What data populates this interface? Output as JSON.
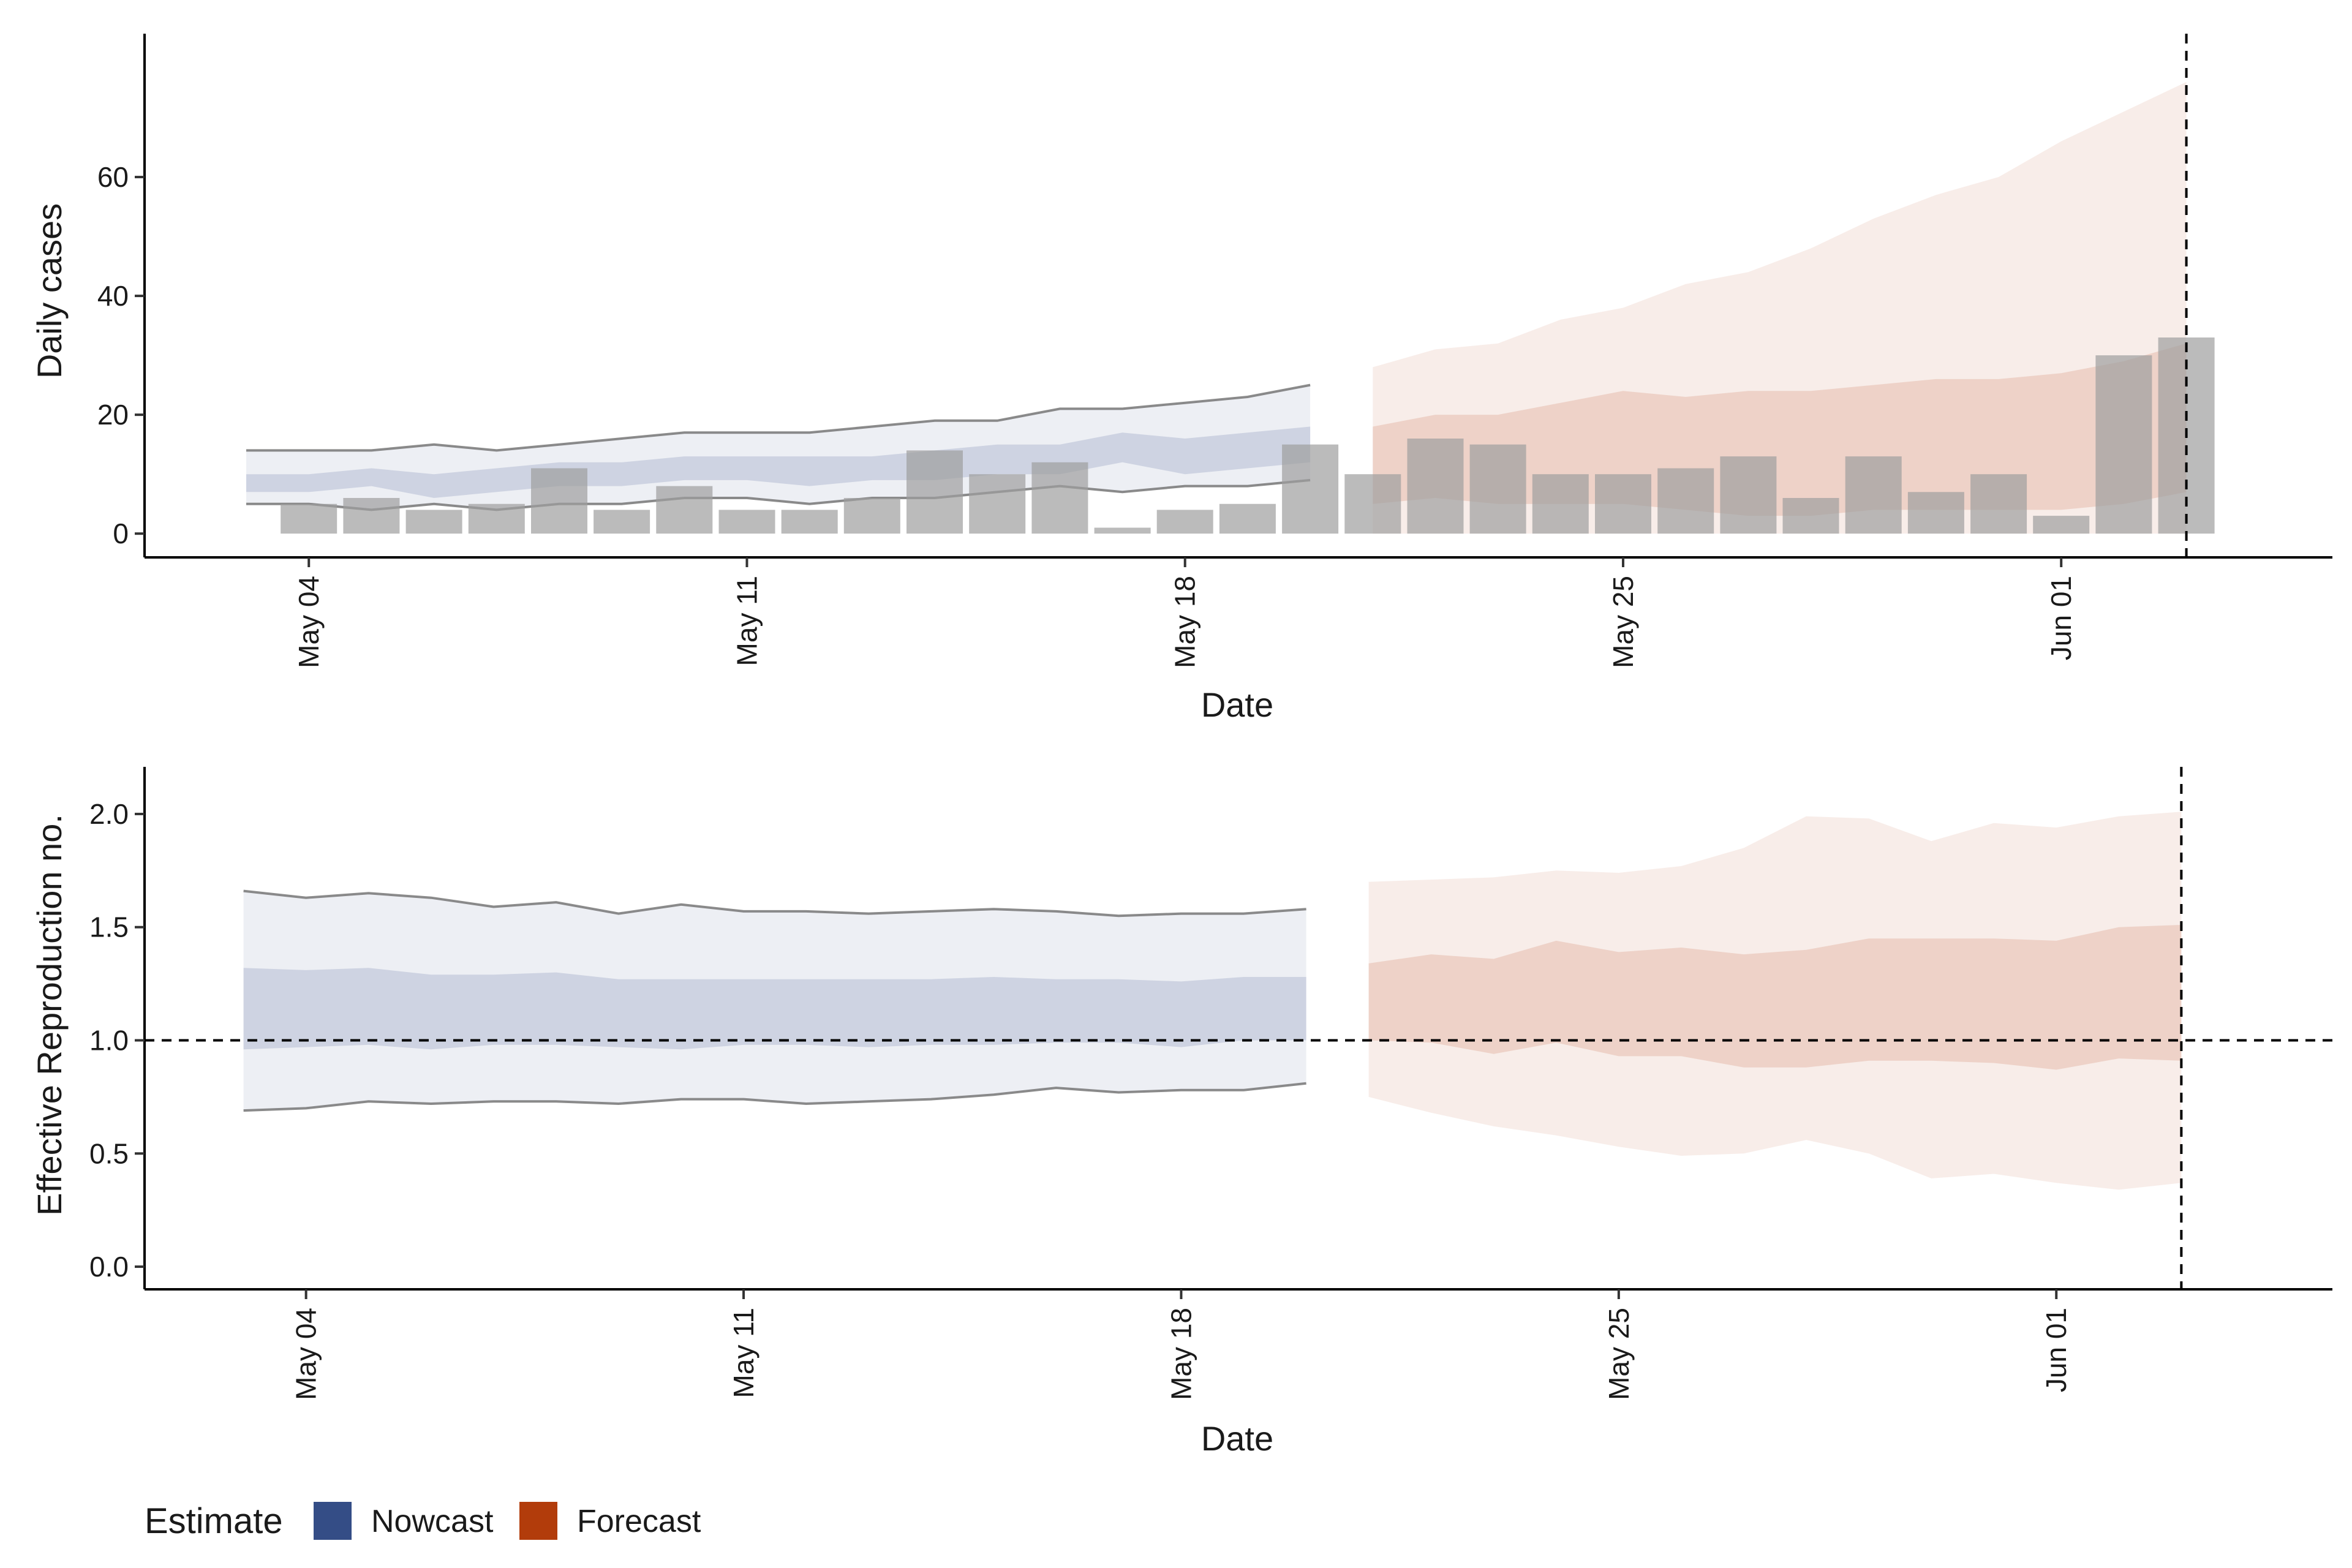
{
  "colors": {
    "nowcast": "#344d86",
    "forecast": "#b23c0b",
    "observed": "#9e9e9e",
    "axis": "#000000"
  },
  "legend": {
    "title": "Estimate",
    "items": [
      {
        "label": "Nowcast",
        "color": "#344d86"
      },
      {
        "label": "Forecast",
        "color": "#b23c0b"
      }
    ]
  },
  "chart_data": [
    {
      "type": "bar",
      "ylabel": "Daily cases",
      "xlabel": "Date",
      "x_ticks": [
        "May 04",
        "May 11",
        "May 18",
        "May 25",
        "Jun 01"
      ],
      "y_ticks": [
        "0",
        "20",
        "40",
        "60"
      ],
      "ylim": [
        -4,
        80
      ],
      "xlim": [
        "2020-05-01T09:00",
        "2020-06-05T08:00"
      ],
      "vline_date": "2020-06-03",
      "observed": {
        "dates": [
          "2020-05-04",
          "2020-05-05",
          "2020-05-06",
          "2020-05-07",
          "2020-05-08",
          "2020-05-09",
          "2020-05-10",
          "2020-05-11",
          "2020-05-12",
          "2020-05-13",
          "2020-05-14",
          "2020-05-15",
          "2020-05-16",
          "2020-05-17",
          "2020-05-18",
          "2020-05-19",
          "2020-05-20",
          "2020-05-21",
          "2020-05-22",
          "2020-05-23",
          "2020-05-24",
          "2020-05-25",
          "2020-05-26",
          "2020-05-27",
          "2020-05-28",
          "2020-05-29",
          "2020-05-30",
          "2020-05-31",
          "2020-06-01",
          "2020-06-02",
          "2020-06-03"
        ],
        "values": [
          5,
          6,
          4,
          5,
          11,
          4,
          8,
          4,
          4,
          6,
          14,
          10,
          12,
          1,
          4,
          5,
          15,
          10,
          16,
          15,
          10,
          10,
          11,
          13,
          6,
          13,
          7,
          10,
          3,
          30,
          33
        ]
      },
      "nowcast": {
        "dates": [
          "2020-05-03",
          "2020-05-04",
          "2020-05-05",
          "2020-05-06",
          "2020-05-07",
          "2020-05-08",
          "2020-05-09",
          "2020-05-10",
          "2020-05-11",
          "2020-05-12",
          "2020-05-13",
          "2020-05-14",
          "2020-05-15",
          "2020-05-16",
          "2020-05-17",
          "2020-05-18",
          "2020-05-19",
          "2020-05-20"
        ],
        "upper90": [
          14,
          14,
          14,
          15,
          14,
          15,
          16,
          17,
          17,
          17,
          18,
          19,
          19,
          21,
          21,
          22,
          23,
          25
        ],
        "upper50": [
          10,
          10,
          11,
          10,
          11,
          12,
          12,
          13,
          13,
          13,
          13,
          14,
          15,
          15,
          17,
          16,
          17,
          18
        ],
        "lower50": [
          7,
          7,
          8,
          6,
          7,
          8,
          8,
          9,
          9,
          8,
          9,
          9,
          10,
          10,
          12,
          10,
          11,
          12
        ],
        "lower90": [
          5,
          5,
          4,
          5,
          4,
          5,
          5,
          6,
          6,
          5,
          6,
          6,
          7,
          8,
          7,
          8,
          8,
          9
        ]
      },
      "forecast": {
        "dates": [
          "2020-05-21",
          "2020-05-22",
          "2020-05-23",
          "2020-05-24",
          "2020-05-25",
          "2020-05-26",
          "2020-05-27",
          "2020-05-28",
          "2020-05-29",
          "2020-05-30",
          "2020-05-31",
          "2020-06-01",
          "2020-06-02",
          "2020-06-03"
        ],
        "upper90": [
          28,
          31,
          32,
          36,
          38,
          42,
          44,
          48,
          53,
          57,
          60,
          66,
          71,
          76
        ],
        "upper50": [
          18,
          20,
          20,
          22,
          24,
          23,
          24,
          24,
          25,
          26,
          26,
          27,
          29,
          32
        ],
        "lower50": [
          5,
          6,
          5,
          5,
          5,
          4,
          3,
          3,
          4,
          4,
          4,
          4,
          5,
          7
        ],
        "lower90": [
          0,
          0,
          0,
          0,
          0,
          0,
          0,
          0,
          0,
          0,
          0,
          0,
          0,
          0
        ]
      }
    },
    {
      "type": "area",
      "ylabel": "Effective Reproduction no.",
      "xlabel": "Date",
      "x_ticks": [
        "May 04",
        "May 11",
        "May 18",
        "May 25",
        "Jun 01"
      ],
      "y_ticks": [
        "0.0",
        "0.5",
        "1.0",
        "1.5",
        "2.0"
      ],
      "ylim": [
        -0.1,
        2.1
      ],
      "xlim": [
        "2020-05-01T10:00",
        "2020-06-05T10:00"
      ],
      "hline": 1.0,
      "vline_date": "2020-06-03",
      "nowcast": {
        "dates": [
          "2020-05-03",
          "2020-05-04",
          "2020-05-05",
          "2020-05-06",
          "2020-05-07",
          "2020-05-08",
          "2020-05-09",
          "2020-05-10",
          "2020-05-11",
          "2020-05-12",
          "2020-05-13",
          "2020-05-14",
          "2020-05-15",
          "2020-05-16",
          "2020-05-17",
          "2020-05-18",
          "2020-05-19",
          "2020-05-20"
        ],
        "upper90": [
          1.66,
          1.63,
          1.65,
          1.63,
          1.59,
          1.61,
          1.56,
          1.6,
          1.57,
          1.57,
          1.56,
          1.57,
          1.58,
          1.57,
          1.55,
          1.56,
          1.56,
          1.58
        ],
        "upper50": [
          1.32,
          1.31,
          1.32,
          1.29,
          1.29,
          1.3,
          1.27,
          1.27,
          1.27,
          1.27,
          1.27,
          1.27,
          1.28,
          1.27,
          1.27,
          1.26,
          1.28,
          1.28
        ],
        "lower50": [
          0.96,
          0.97,
          0.98,
          0.96,
          0.98,
          0.98,
          0.97,
          0.96,
          0.98,
          0.98,
          0.97,
          0.98,
          0.98,
          0.99,
          0.99,
          0.97,
          1.0,
          1.0
        ],
        "lower90": [
          0.69,
          0.7,
          0.73,
          0.72,
          0.73,
          0.73,
          0.72,
          0.74,
          0.74,
          0.72,
          0.73,
          0.74,
          0.76,
          0.79,
          0.77,
          0.78,
          0.78,
          0.81
        ]
      },
      "forecast": {
        "dates": [
          "2020-05-21",
          "2020-05-22",
          "2020-05-23",
          "2020-05-24",
          "2020-05-25",
          "2020-05-26",
          "2020-05-27",
          "2020-05-28",
          "2020-05-29",
          "2020-05-30",
          "2020-05-31",
          "2020-06-01",
          "2020-06-02",
          "2020-06-03"
        ],
        "upper90": [
          1.7,
          1.71,
          1.72,
          1.75,
          1.74,
          1.77,
          1.85,
          1.99,
          1.98,
          1.88,
          1.96,
          1.94,
          1.99,
          2.01
        ],
        "upper50": [
          1.34,
          1.38,
          1.36,
          1.44,
          1.39,
          1.41,
          1.38,
          1.4,
          1.45,
          1.45,
          1.45,
          1.44,
          1.5,
          1.51
        ],
        "lower50": [
          1.0,
          0.99,
          0.94,
          0.99,
          0.93,
          0.93,
          0.88,
          0.88,
          0.91,
          0.91,
          0.9,
          0.87,
          0.92,
          0.91
        ],
        "lower90": [
          0.75,
          0.68,
          0.62,
          0.58,
          0.53,
          0.49,
          0.5,
          0.56,
          0.5,
          0.39,
          0.41,
          0.37,
          0.34,
          0.37
        ]
      }
    }
  ]
}
